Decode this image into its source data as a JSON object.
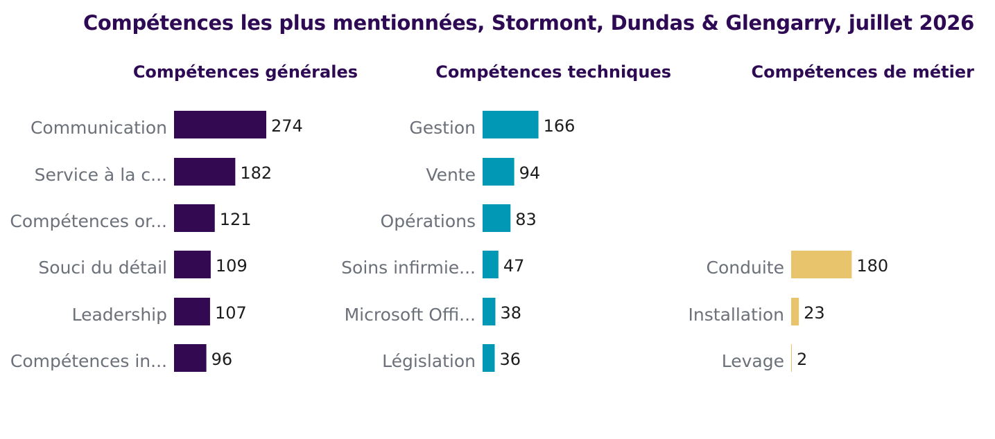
{
  "title": "Compétences les plus mentionnées, Stormont, Dundas & Glengarry, juillet 2026",
  "chart_data": [
    {
      "type": "bar",
      "orientation": "horizontal",
      "title": "Compétences générales",
      "color": "#330a52",
      "categories": [
        "Communication",
        "Service à la c...",
        "Compétences or...",
        "Souci du détail",
        "Leadership",
        "Compétences in..."
      ],
      "values": [
        274,
        182,
        121,
        109,
        107,
        96
      ]
    },
    {
      "type": "bar",
      "orientation": "horizontal",
      "title": "Compétences techniques",
      "color": "#0098b5",
      "categories": [
        "Gestion",
        "Vente",
        "Opérations",
        "Soins infirmie...",
        "Microsoft Offi...",
        "Législation"
      ],
      "values": [
        166,
        94,
        83,
        47,
        38,
        36
      ]
    },
    {
      "type": "bar",
      "orientation": "horizontal",
      "title": "Compétences de métier",
      "color": "#e8c46c",
      "categories": [
        "",
        "",
        "",
        "Conduite",
        "Installation",
        "Levage"
      ],
      "values": [
        null,
        null,
        null,
        180,
        23,
        2
      ]
    }
  ]
}
